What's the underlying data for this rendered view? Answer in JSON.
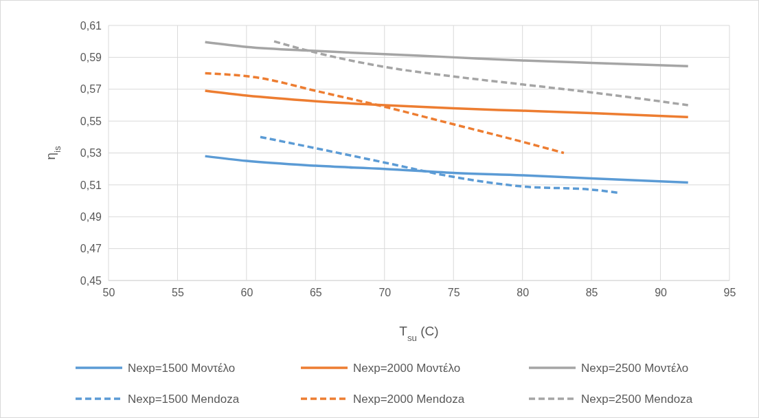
{
  "chart_data": {
    "type": "line",
    "xlabel": "T$_{su}$ (C)",
    "ylabel": "η$_{is}$",
    "xlim": [
      50,
      95
    ],
    "xticks": [
      50,
      55,
      60,
      65,
      70,
      75,
      80,
      85,
      90,
      95
    ],
    "ylim": [
      0.45,
      0.61
    ],
    "yticks": [
      {
        "value": 0.45,
        "label": "0,45"
      },
      {
        "value": 0.47,
        "label": "0,47"
      },
      {
        "value": 0.49,
        "label": "0,49"
      },
      {
        "value": 0.51,
        "label": "0,51"
      },
      {
        "value": 0.53,
        "label": "0,53"
      },
      {
        "value": 0.55,
        "label": "0,55"
      },
      {
        "value": 0.57,
        "label": "0,57"
      },
      {
        "value": 0.59,
        "label": "0,59"
      },
      {
        "value": 0.61,
        "label": "0,61"
      }
    ],
    "grid": true,
    "legend": "bottom",
    "marker": "none",
    "series": [
      {
        "name": "Nexp=1500 Μοντέλο",
        "color": "#5b9bd5",
        "line_style": "solid",
        "x": [
          57,
          60,
          65,
          70,
          75,
          80,
          85,
          92
        ],
        "values": [
          0.528,
          0.525,
          0.522,
          0.52,
          0.5175,
          0.516,
          0.514,
          0.5115
        ]
      },
      {
        "name": "Nexp=2000 Μοντέλο",
        "color": "#ed7d31",
        "line_style": "solid",
        "x": [
          57,
          60,
          65,
          70,
          75,
          80,
          85,
          92
        ],
        "values": [
          0.569,
          0.566,
          0.5625,
          0.56,
          0.558,
          0.5565,
          0.555,
          0.5525
        ]
      },
      {
        "name": "Nexp=2500 Μοντέλο",
        "color": "#a5a5a5",
        "line_style": "solid",
        "x": [
          57,
          60,
          65,
          70,
          75,
          80,
          85,
          92
        ],
        "values": [
          0.5995,
          0.5965,
          0.594,
          0.592,
          0.59,
          0.588,
          0.5865,
          0.5845
        ]
      },
      {
        "name": "Nexp=1500 Mendoza",
        "color": "#5b9bd5",
        "line_style": "dashed",
        "x": [
          61,
          65,
          70,
          75,
          80,
          85,
          87
        ],
        "values": [
          0.54,
          0.533,
          0.524,
          0.515,
          0.509,
          0.507,
          0.505
        ]
      },
      {
        "name": "Nexp=2000 Mendoza",
        "color": "#ed7d31",
        "line_style": "dashed",
        "x": [
          57,
          61,
          65,
          70,
          75,
          80,
          83
        ],
        "values": [
          0.58,
          0.577,
          0.569,
          0.559,
          0.548,
          0.537,
          0.53
        ]
      },
      {
        "name": "Nexp=2500 Mendoza",
        "color": "#a5a5a5",
        "line_style": "dashed",
        "x": [
          62,
          65,
          70,
          75,
          80,
          85,
          92
        ],
        "values": [
          0.6,
          0.593,
          0.584,
          0.578,
          0.573,
          0.568,
          0.56
        ]
      }
    ]
  }
}
